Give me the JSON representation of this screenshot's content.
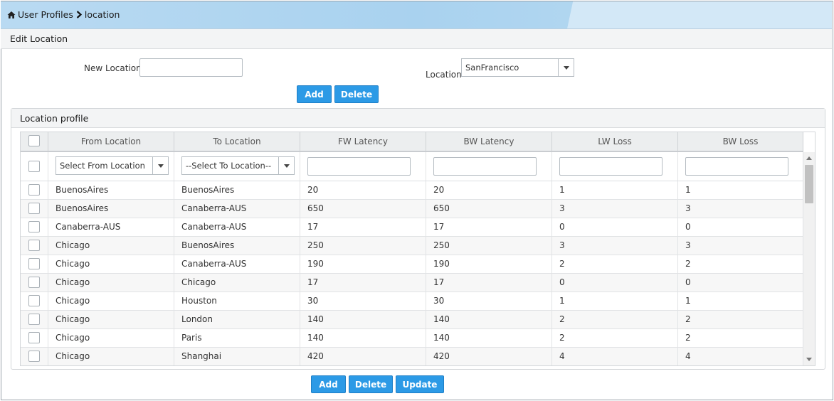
{
  "breadcrumb": {
    "root": "User Profiles",
    "current": "location",
    "home_icon": "home-icon",
    "separator_icon": "chevron-right-icon"
  },
  "edit_section": {
    "title": "Edit Location"
  },
  "form": {
    "new_location_label": "New Location",
    "new_location_value": "",
    "location_label": "Location",
    "location_selected": "SanFrancisco",
    "add_label": "Add",
    "delete_label": "Delete"
  },
  "profile_panel": {
    "title": "Location profile"
  },
  "table": {
    "columns": [
      "From Location",
      "To Location",
      "FW Latency",
      "BW Latency",
      "LW Loss",
      "BW Loss"
    ],
    "filters": {
      "from_placeholder": "Select From Location",
      "to_placeholder": "--Select To Location--"
    },
    "rows": [
      [
        "BuenosAires",
        "BuenosAires",
        "20",
        "20",
        "1",
        "1"
      ],
      [
        "BuenosAires",
        "Canaberra-AUS",
        "650",
        "650",
        "3",
        "3"
      ],
      [
        "Canaberra-AUS",
        "Canaberra-AUS",
        "17",
        "17",
        "0",
        "0"
      ],
      [
        "Chicago",
        "BuenosAires",
        "250",
        "250",
        "3",
        "3"
      ],
      [
        "Chicago",
        "Canaberra-AUS",
        "190",
        "190",
        "2",
        "2"
      ],
      [
        "Chicago",
        "Chicago",
        "17",
        "17",
        "0",
        "0"
      ],
      [
        "Chicago",
        "Houston",
        "30",
        "30",
        "1",
        "1"
      ],
      [
        "Chicago",
        "London",
        "140",
        "140",
        "2",
        "2"
      ],
      [
        "Chicago",
        "Paris",
        "140",
        "140",
        "2",
        "2"
      ],
      [
        "Chicago",
        "Shanghai",
        "420",
        "420",
        "4",
        "4"
      ]
    ]
  },
  "footer": {
    "add_label": "Add",
    "delete_label": "Delete",
    "update_label": "Update"
  },
  "colors": {
    "accent": "#2c9ae6",
    "header_bg": "#b9daf2"
  }
}
